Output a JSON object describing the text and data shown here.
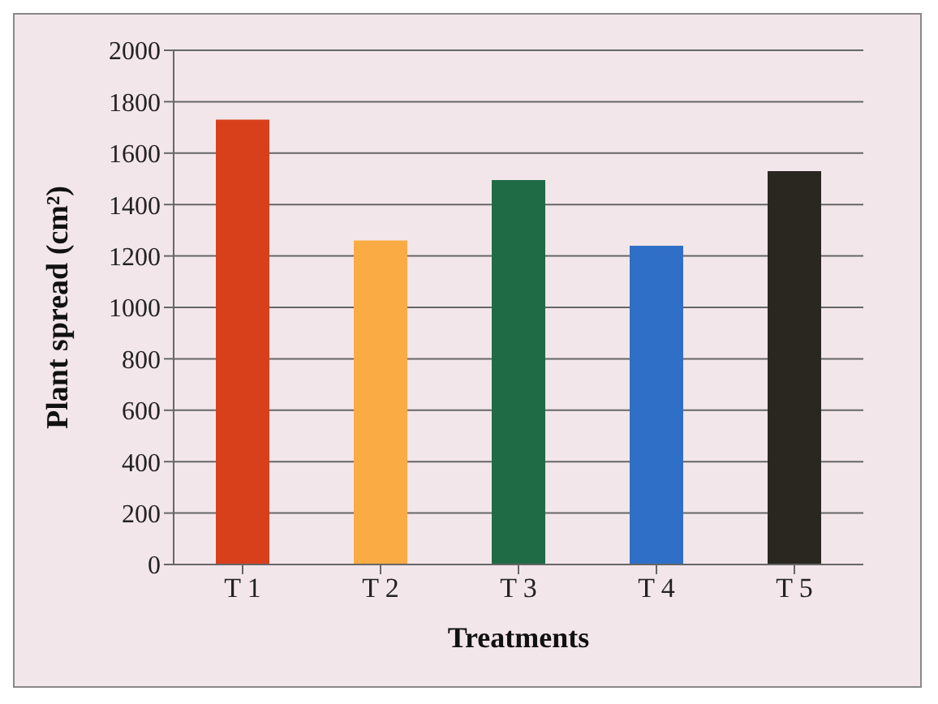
{
  "chart_data": {
    "type": "bar",
    "xlabel": "Treatments",
    "ylabel": "Plant spread (cm²)",
    "categories": [
      "T 1",
      "T 2",
      "T 3",
      "T 4",
      "T 5"
    ],
    "values": [
      1730,
      1260,
      1495,
      1240,
      1530
    ],
    "colors": [
      "#d8401c",
      "#fbab44",
      "#1e6b45",
      "#2f6fc8",
      "#2a2620"
    ],
    "ylim": [
      0,
      2000
    ],
    "yticks": [
      0,
      200,
      400,
      600,
      800,
      1000,
      1200,
      1400,
      1600,
      1800,
      2000
    ],
    "grid": "y",
    "legend": false
  }
}
